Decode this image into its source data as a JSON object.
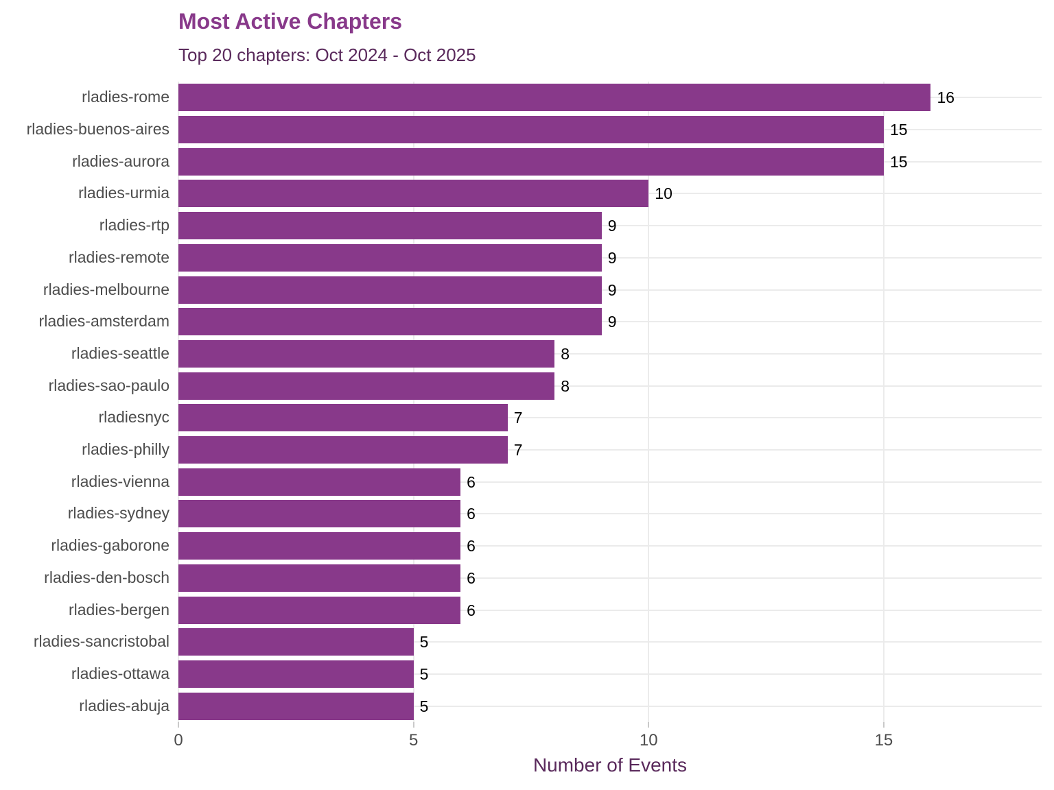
{
  "chart_data": {
    "type": "bar",
    "orientation": "horizontal",
    "title": "Most Active Chapters",
    "subtitle": "Top 20 chapters: Oct 2024 - Oct 2025",
    "xlabel": "Number of Events",
    "ylabel": "",
    "categories": [
      "rladies-rome",
      "rladies-buenos-aires",
      "rladies-aurora",
      "rladies-urmia",
      "rladies-rtp",
      "rladies-remote",
      "rladies-melbourne",
      "rladies-amsterdam",
      "rladies-seattle",
      "rladies-sao-paulo",
      "rladiesnyc",
      "rladies-philly",
      "rladies-vienna",
      "rladies-sydney",
      "rladies-gaborone",
      "rladies-den-bosch",
      "rladies-bergen",
      "rladies-sancristobal",
      "rladies-ottawa",
      "rladies-abuja"
    ],
    "values": [
      16,
      15,
      15,
      10,
      9,
      9,
      9,
      9,
      8,
      8,
      7,
      7,
      6,
      6,
      6,
      6,
      6,
      5,
      5,
      5
    ],
    "value_labels": [
      "16",
      "15",
      "15",
      "10",
      "9",
      "9",
      "9",
      "9",
      "8",
      "8",
      "7",
      "7",
      "6",
      "6",
      "6",
      "6",
      "6",
      "5",
      "5",
      "5"
    ],
    "x_ticks": [
      0,
      5,
      10,
      15
    ],
    "x_tick_labels": [
      "0",
      "5",
      "10",
      "15"
    ],
    "xlim": [
      0,
      18.35
    ],
    "grid": "major-only",
    "legend": "none",
    "colors": {
      "bar": "#88398A",
      "title": "#88398A",
      "subtitle": "#5A2A5C",
      "axis_title": "#5A2A5C",
      "axis_text": "#4D4D4D",
      "value_label": "#000000",
      "gridline": "#EBEBEB",
      "tick_mark": "#C9C9C9",
      "background": "#FFFFFF"
    }
  }
}
